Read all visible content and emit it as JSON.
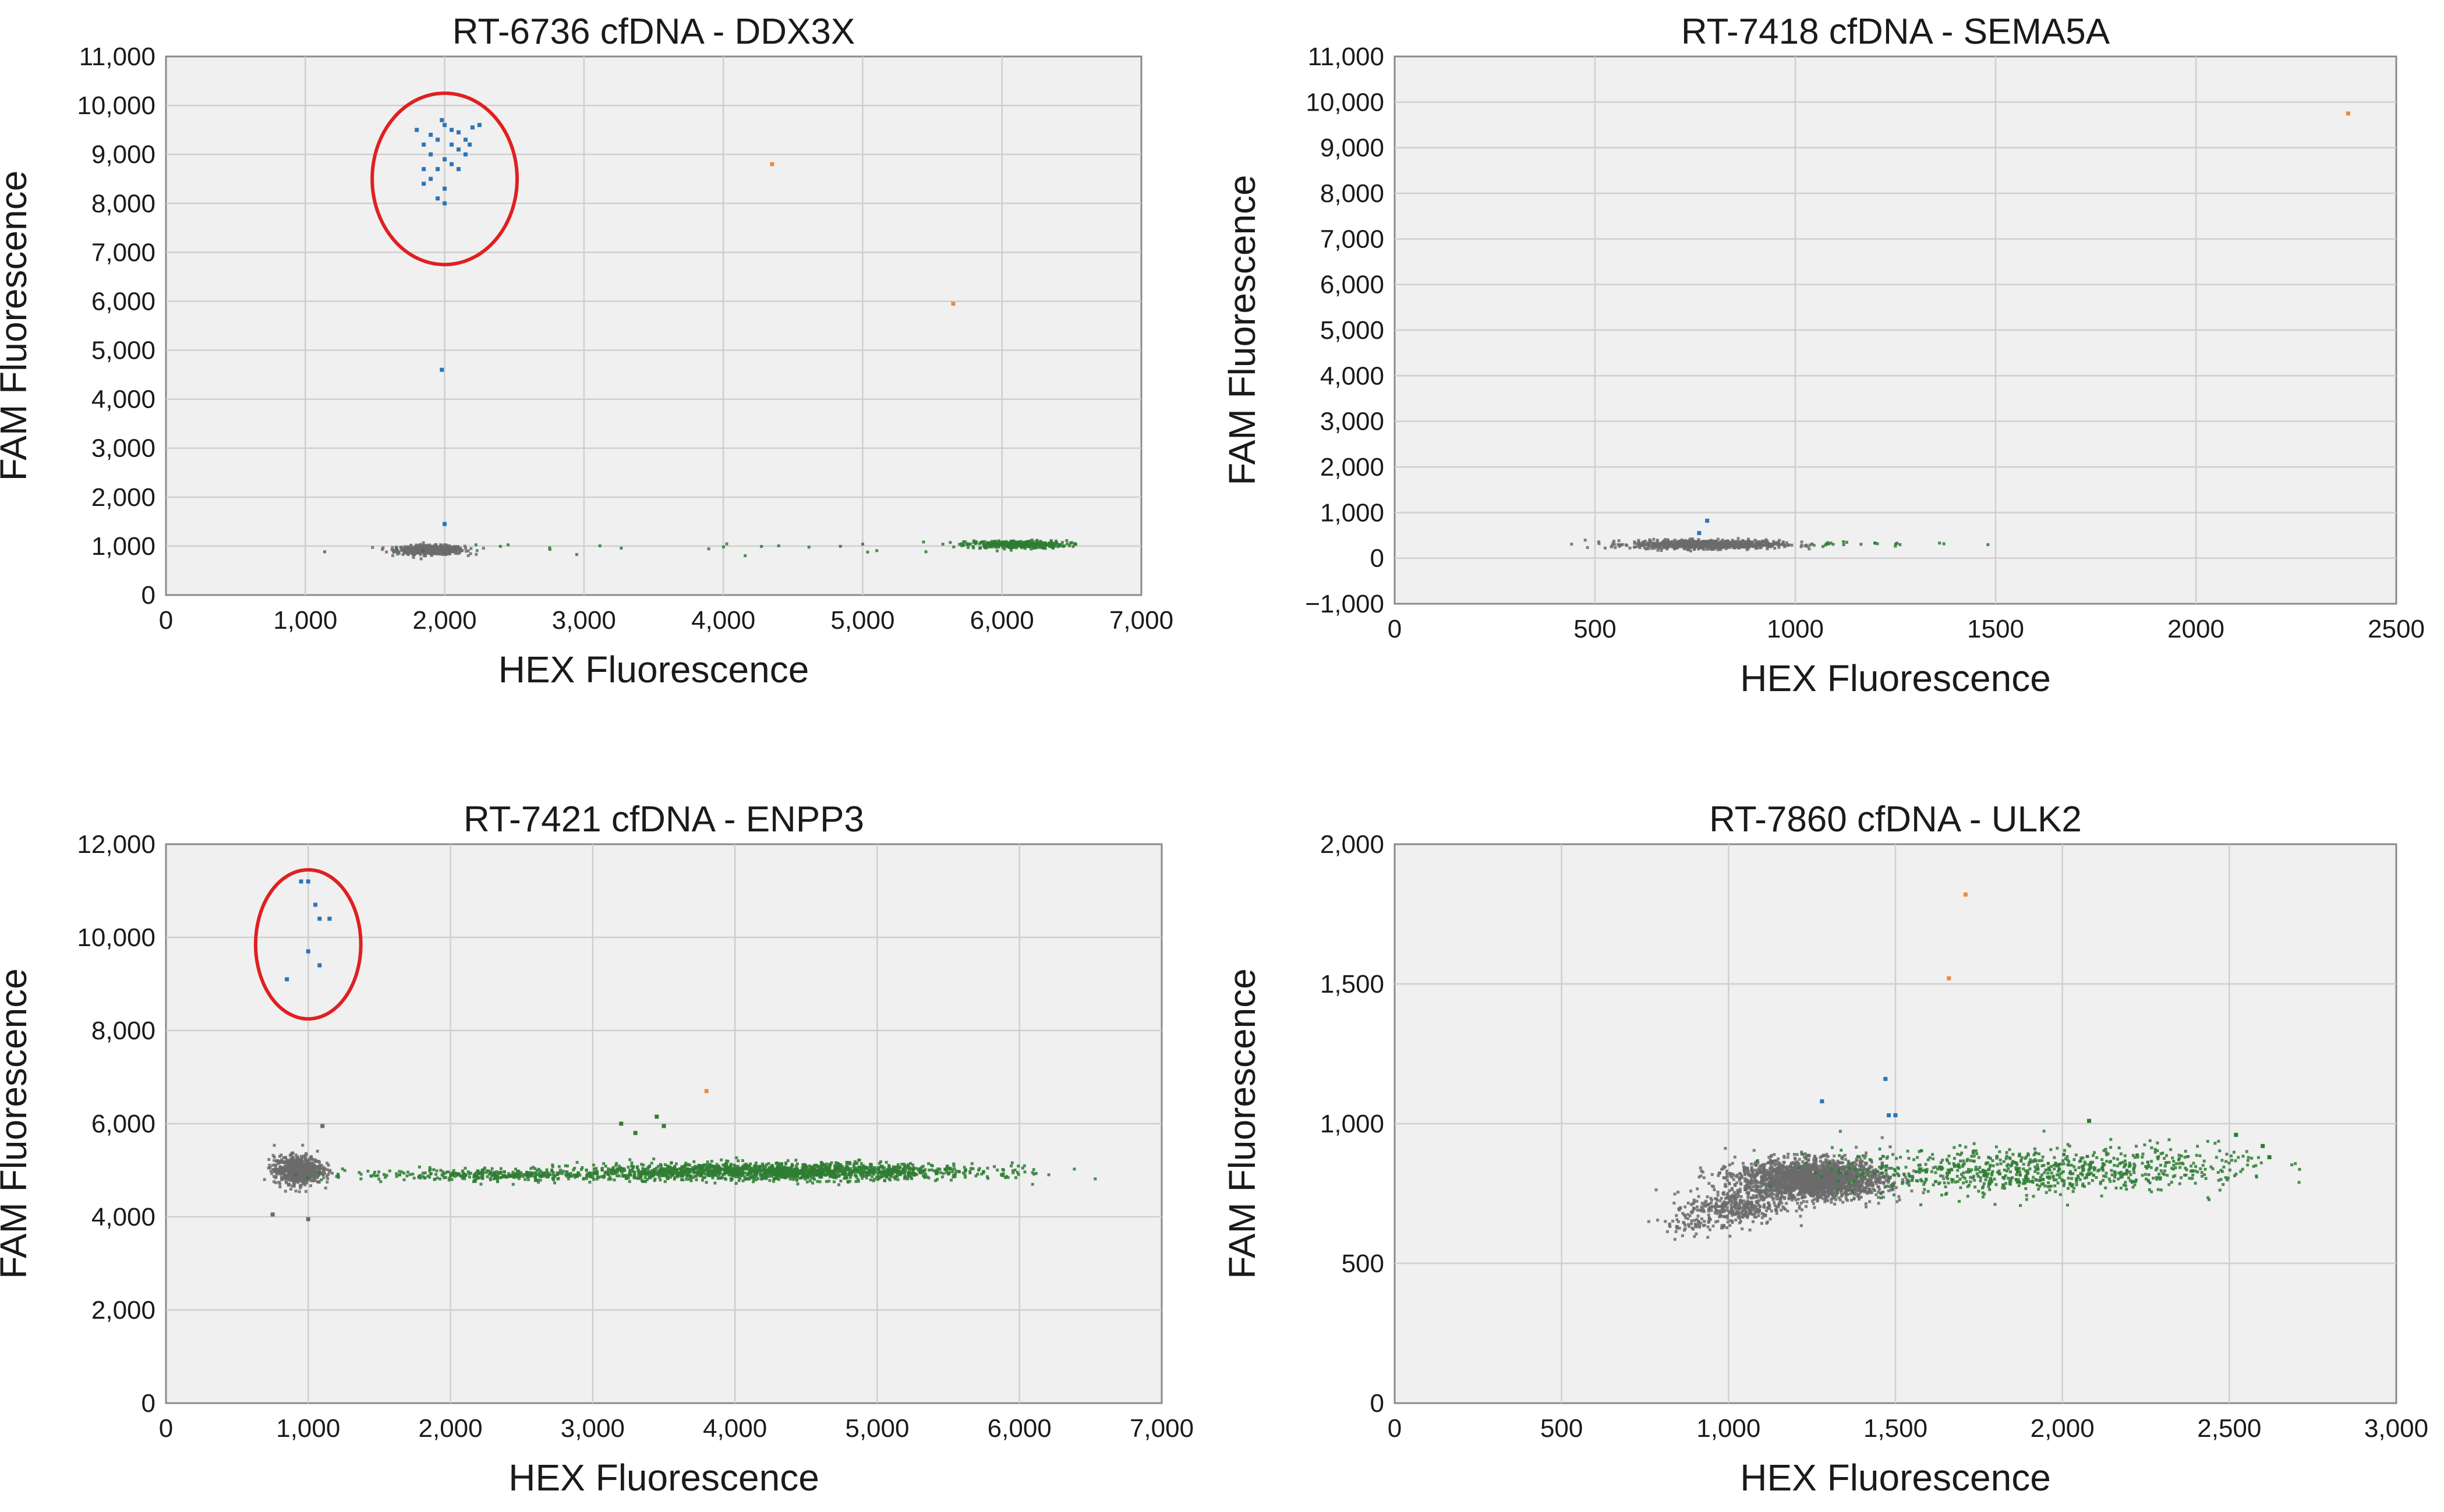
{
  "figure_colors": {
    "negative": "#6b6b6b",
    "fam_positive": "#2e75b6",
    "hex_positive": "#2e7d32",
    "double_positive": "#f08a3c",
    "annotation": "#e02020"
  },
  "chart_data": [
    {
      "type": "scatter",
      "title": "RT-6736 cfDNA - DDX3X",
      "xlabel": "HEX Fluorescence",
      "ylabel": "FAM Fluorescence",
      "xlim": [
        0,
        7000
      ],
      "ylim": [
        0,
        11000
      ],
      "xticks": [
        0,
        1000,
        2000,
        3000,
        4000,
        5000,
        6000,
        7000
      ],
      "xtick_labels": [
        "0",
        "1,000",
        "2,000",
        "3,000",
        "4,000",
        "5,000",
        "6,000",
        "7,000"
      ],
      "yticks": [
        0,
        1000,
        2000,
        3000,
        4000,
        5000,
        6000,
        7000,
        8000,
        9000,
        10000,
        11000
      ],
      "ytick_labels": [
        "0",
        "1,000",
        "2,000",
        "3,000",
        "4,000",
        "5,000",
        "6,000",
        "7,000",
        "8,000",
        "9,000",
        "10,000",
        "11,000"
      ],
      "grid": true,
      "clusters": [
        {
          "color": "#6b6b6b",
          "count": 550,
          "cx": 1900,
          "cy": 920,
          "sx": 120,
          "sy": 45
        },
        {
          "color": "#2e7d32",
          "count": 360,
          "cx": 6100,
          "cy": 1030,
          "sx": 180,
          "sy": 40
        },
        {
          "color": "#2e7d32",
          "count": 25,
          "cx": 3600,
          "cy": 960,
          "sx": 1100,
          "sy": 60
        }
      ],
      "points": [
        {
          "color": "#2e75b6",
          "xy": [
            [
              1800,
              9500
            ],
            [
              1850,
              9200
            ],
            [
              1900,
              9400
            ],
            [
              1950,
              9300
            ],
            [
              2000,
              9600
            ],
            [
              2050,
              9500
            ],
            [
              2100,
              9450
            ],
            [
              2150,
              9300
            ],
            [
              2200,
              9550
            ],
            [
              2250,
              9600
            ],
            [
              1900,
              9000
            ],
            [
              2000,
              8900
            ],
            [
              2100,
              9100
            ],
            [
              1950,
              8700
            ],
            [
              2050,
              8800
            ],
            [
              2150,
              9000
            ],
            [
              1900,
              8500
            ],
            [
              2000,
              8300
            ],
            [
              1950,
              8100
            ],
            [
              2000,
              8000
            ],
            [
              1850,
              8400
            ],
            [
              2100,
              8700
            ],
            [
              2180,
              9200
            ],
            [
              1980,
              9700
            ],
            [
              2050,
              9200
            ],
            [
              1850,
              8700
            ],
            [
              1980,
              4600
            ],
            [
              2000,
              1450
            ]
          ]
        },
        {
          "color": "#f08a3c",
          "xy": [
            [
              4350,
              8800
            ],
            [
              5650,
              5950
            ]
          ]
        }
      ],
      "annotations": [
        {
          "type": "ellipse",
          "cx": 2000,
          "cy": 8500,
          "rx": 520,
          "ry": 1750
        }
      ]
    },
    {
      "type": "scatter",
      "title": "RT-7418 cfDNA - SEMA5A",
      "xlabel": "HEX Fluorescence",
      "ylabel": "FAM Fluorescence",
      "xlim": [
        0,
        2500
      ],
      "ylim": [
        -1000,
        11000
      ],
      "xticks": [
        0,
        500,
        1000,
        1500,
        2000,
        2500
      ],
      "xtick_labels": [
        "0",
        "500",
        "1000",
        "1500",
        "2000",
        "2500"
      ],
      "yticks": [
        -1000,
        0,
        1000,
        2000,
        3000,
        4000,
        5000,
        6000,
        7000,
        8000,
        9000,
        10000,
        11000
      ],
      "ytick_labels": [
        "−1,000",
        "0",
        "1,000",
        "2,000",
        "3,000",
        "4,000",
        "5,000",
        "6,000",
        "7,000",
        "8,000",
        "9,000",
        "10,000",
        "11,000"
      ],
      "grid": true,
      "clusters": [
        {
          "color": "#6b6b6b",
          "count": 900,
          "cx": 780,
          "cy": 300,
          "sx": 90,
          "sy": 45
        },
        {
          "color": "#2e7d32",
          "count": 22,
          "cx": 1180,
          "cy": 320,
          "sx": 110,
          "sy": 30
        }
      ],
      "points": [
        {
          "color": "#2e75b6",
          "xy": [
            [
              780,
              820
            ],
            [
              760,
              550
            ]
          ]
        },
        {
          "color": "#f08a3c",
          "xy": [
            [
              2380,
              9750
            ]
          ]
        }
      ],
      "annotations": []
    },
    {
      "type": "scatter",
      "title": "RT-7421 cfDNA - ENPP3",
      "xlabel": "HEX Fluorescence",
      "ylabel": "FAM Fluorescence",
      "xlim": [
        0,
        7000
      ],
      "ylim": [
        0,
        12000
      ],
      "xticks": [
        0,
        1000,
        2000,
        3000,
        4000,
        5000,
        6000,
        7000
      ],
      "xtick_labels": [
        "0",
        "1,000",
        "2,000",
        "3,000",
        "4,000",
        "5,000",
        "6,000",
        "7,000"
      ],
      "yticks": [
        0,
        2000,
        4000,
        6000,
        8000,
        10000,
        12000
      ],
      "ytick_labels": [
        "0",
        "2,000",
        "4,000",
        "6,000",
        "8,000",
        "10,000",
        "12,000"
      ],
      "grid": true,
      "clusters": [
        {
          "color": "#6b6b6b",
          "count": 700,
          "cx": 930,
          "cy": 5000,
          "sx": 85,
          "sy": 150
        },
        {
          "color": "#2e7d32",
          "count": 1600,
          "cx": 4300,
          "cy": 4970,
          "sx": 700,
          "sy": 90
        },
        {
          "color": "#2e7d32",
          "count": 350,
          "cx": 2400,
          "cy": 4900,
          "sx": 550,
          "sy": 60
        }
      ],
      "points": [
        {
          "color": "#2e75b6",
          "xy": [
            [
              950,
              11200
            ],
            [
              1000,
              11200
            ],
            [
              1050,
              10700
            ],
            [
              1080,
              10400
            ],
            [
              1150,
              10400
            ],
            [
              1000,
              9700
            ],
            [
              850,
              9100
            ],
            [
              1080,
              9400
            ]
          ]
        },
        {
          "color": "#f08a3c",
          "xy": [
            [
              3800,
              6700
            ]
          ]
        },
        {
          "color": "#2e7d32",
          "xy": [
            [
              3450,
              6150
            ],
            [
              3200,
              6000
            ],
            [
              3500,
              5950
            ],
            [
              3300,
              5800
            ]
          ]
        },
        {
          "color": "#6b6b6b",
          "xy": [
            [
              1000,
              3950
            ],
            [
              750,
              4050
            ],
            [
              1100,
              5950
            ]
          ]
        }
      ],
      "annotations": [
        {
          "type": "ellipse",
          "cx": 1000,
          "cy": 9850,
          "rx": 370,
          "ry": 1600
        }
      ]
    },
    {
      "type": "scatter",
      "title": "RT-7860 cfDNA - ULK2",
      "xlabel": "HEX Fluorescence",
      "ylabel": "FAM Fluorescence",
      "xlim": [
        0,
        3000
      ],
      "ylim": [
        0,
        2000
      ],
      "xticks": [
        0,
        500,
        1000,
        1500,
        2000,
        2500,
        3000
      ],
      "xtick_labels": [
        "0",
        "500",
        "1,000",
        "1,500",
        "2,000",
        "2,500",
        "3,000"
      ],
      "yticks": [
        0,
        500,
        1000,
        1500,
        2000
      ],
      "ytick_labels": [
        "0",
        "500",
        "1,000",
        "1,500",
        "2,000"
      ],
      "grid": true,
      "clusters": [
        {
          "color": "#6b6b6b",
          "count": 2200,
          "cx": 1250,
          "cy": 800,
          "sx": 110,
          "sy": 35
        },
        {
          "color": "#6b6b6b",
          "count": 350,
          "cx": 1020,
          "cy": 700,
          "sx": 70,
          "sy": 30
        },
        {
          "color": "#6b6b6b",
          "count": 60,
          "cx": 900,
          "cy": 640,
          "sx": 60,
          "sy": 25
        },
        {
          "color": "#2e7d32",
          "count": 700,
          "cx": 1850,
          "cy": 830,
          "sx": 260,
          "sy": 40
        },
        {
          "color": "#2e7d32",
          "count": 130,
          "cx": 2350,
          "cy": 860,
          "sx": 140,
          "sy": 40
        }
      ],
      "points": [
        {
          "color": "#2e75b6",
          "xy": [
            [
              1280,
              1080
            ],
            [
              1470,
              1160
            ],
            [
              1480,
              1030
            ],
            [
              1500,
              1030
            ]
          ]
        },
        {
          "color": "#f08a3c",
          "xy": [
            [
              1710,
              1820
            ],
            [
              1660,
              1520
            ]
          ]
        },
        {
          "color": "#2e7d32",
          "xy": [
            [
              2080,
              1010
            ],
            [
              2600,
              920
            ],
            [
              2620,
              880
            ],
            [
              2520,
              960
            ]
          ]
        }
      ],
      "annotations": []
    }
  ]
}
